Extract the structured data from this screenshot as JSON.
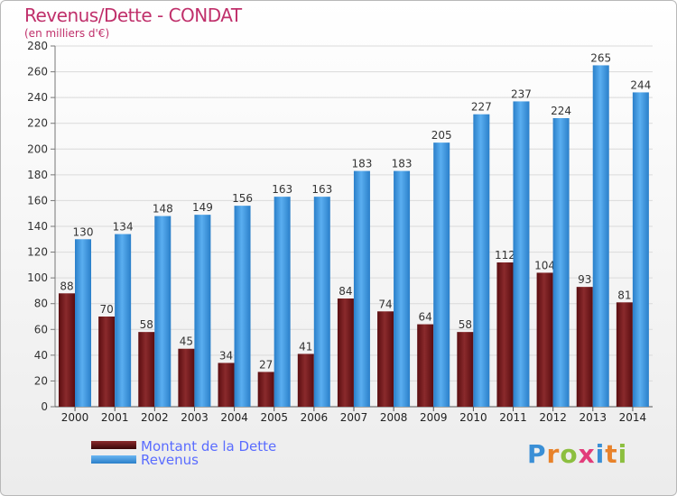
{
  "header": {
    "title": "Revenus/Dette - CONDAT",
    "subtitle": "(en milliers d'€)"
  },
  "chart_data": {
    "type": "bar",
    "title": "Revenus/Dette - CONDAT",
    "subtitle": "(en milliers d'€)",
    "categories": [
      "2000",
      "2001",
      "2002",
      "2003",
      "2004",
      "2005",
      "2006",
      "2007",
      "2008",
      "2009",
      "2010",
      "2011",
      "2012",
      "2013",
      "2014"
    ],
    "series": [
      {
        "name": "Montant de la Dette",
        "color": "#7a1f22",
        "values": [
          88,
          70,
          58,
          45,
          34,
          27,
          41,
          84,
          74,
          64,
          58,
          112,
          104,
          93,
          81
        ]
      },
      {
        "name": "Revenus",
        "color": "#3d97df",
        "values": [
          130,
          134,
          148,
          149,
          156,
          163,
          163,
          183,
          183,
          205,
          227,
          237,
          224,
          265,
          244
        ]
      }
    ],
    "ylim": [
      0,
      280
    ],
    "ytick_step": 20,
    "grid": true,
    "legend": "bottom-left"
  },
  "legend": {
    "items": [
      {
        "label": "Montant de la Dette",
        "color": "#6a1416"
      },
      {
        "label": "Revenus",
        "color": "#3d97df"
      }
    ]
  },
  "logo": {
    "letters": [
      "P",
      "r",
      "o",
      "x",
      "i",
      "t",
      "i"
    ],
    "colors": [
      "#3a8fd6",
      "#e8822a",
      "#8cbf3f",
      "#e23c7a",
      "#3a8fd6",
      "#e8822a",
      "#8cbf3f"
    ]
  }
}
